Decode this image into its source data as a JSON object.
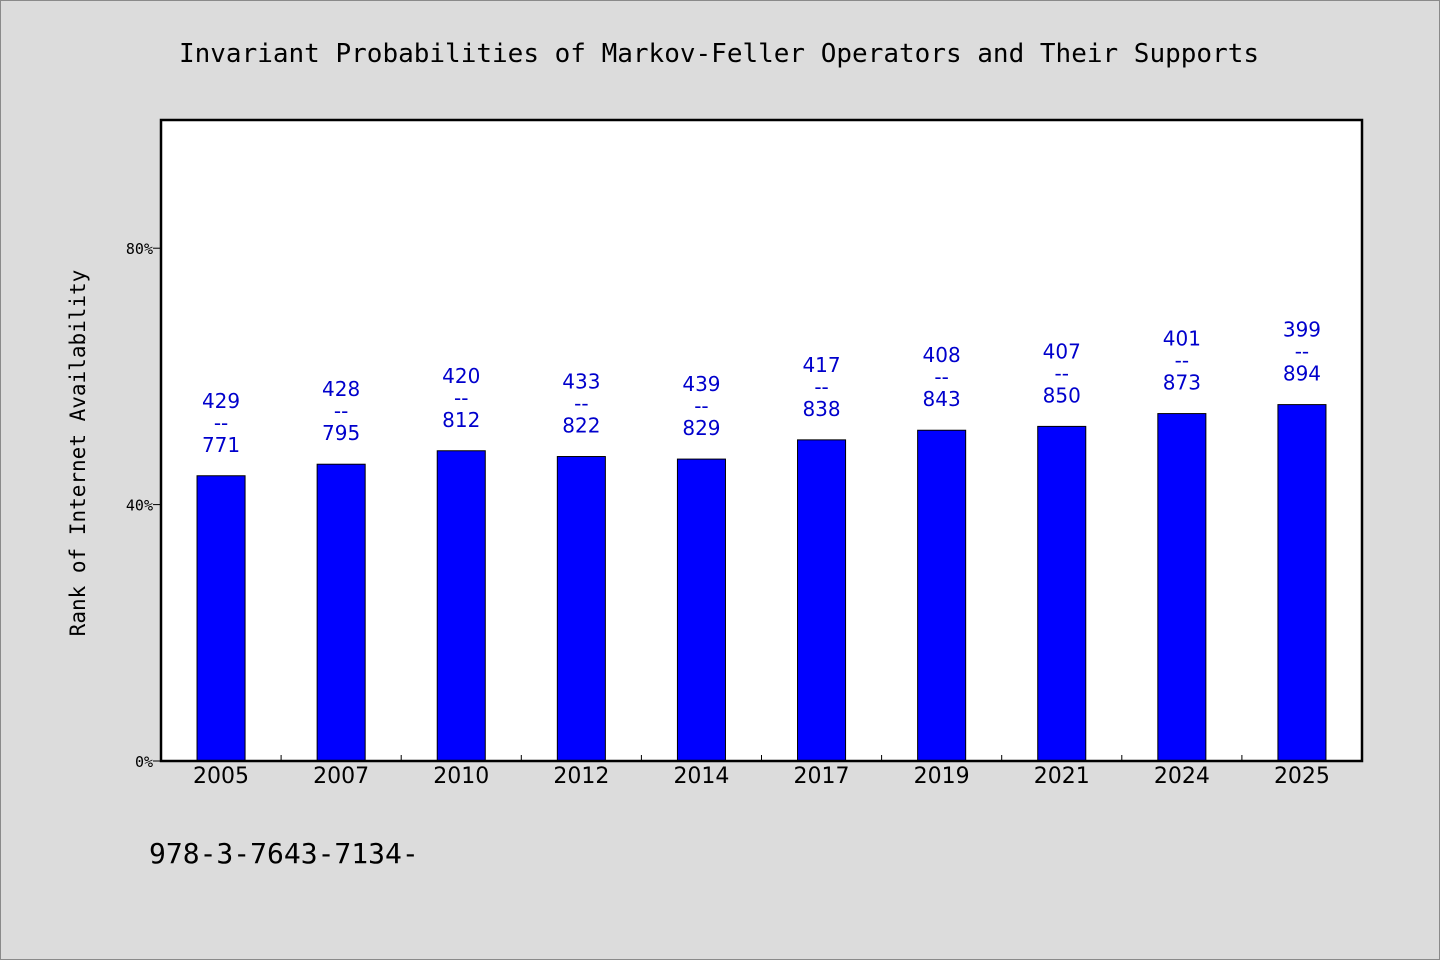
{
  "chart_data": {
    "type": "bar",
    "title": "Invariant Probabilities of Markov-Feller Operators and Their Supports",
    "ylabel": "Rank of Internet Availability",
    "xlabel": "",
    "ylim": [
      0,
      100
    ],
    "yticks": [
      0,
      40,
      80
    ],
    "ytick_labels": [
      "0%",
      "40%",
      "80%"
    ],
    "categories": [
      "2005",
      "2007",
      "2010",
      "2012",
      "2014",
      "2017",
      "2019",
      "2021",
      "2024",
      "2025"
    ],
    "values": [
      44.5,
      46.3,
      48.4,
      47.5,
      47.1,
      50.1,
      51.6,
      52.2,
      54.2,
      55.6
    ],
    "data_labels": [
      [
        "429",
        "--",
        "771"
      ],
      [
        "428",
        "--",
        "795"
      ],
      [
        "420",
        "--",
        "812"
      ],
      [
        "433",
        "--",
        "822"
      ],
      [
        "439",
        "--",
        "829"
      ],
      [
        "417",
        "--",
        "838"
      ],
      [
        "408",
        "--",
        "843"
      ],
      [
        "407",
        "--",
        "850"
      ],
      [
        "401",
        "--",
        "873"
      ],
      [
        "399",
        "--",
        "894"
      ]
    ],
    "grid": false,
    "legend": "none",
    "bar_color": "#0000ff",
    "label_color": "#0000cc",
    "background_color": "#dcdcdc",
    "plot_background_color": "#ffffff"
  },
  "footnote": "978-3-7643-7134-"
}
